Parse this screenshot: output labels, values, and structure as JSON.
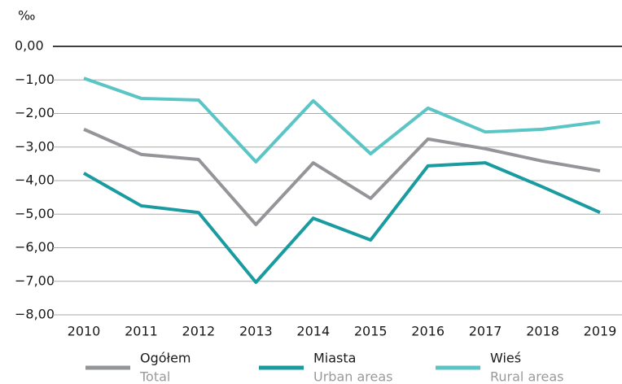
{
  "chart_data": {
    "type": "line",
    "y_unit": "‰",
    "categories": [
      "2010",
      "2011",
      "2012",
      "2013",
      "2014",
      "2015",
      "2016",
      "2017",
      "2018",
      "2019"
    ],
    "series": [
      {
        "name": "Ogółem",
        "name_en": "Total",
        "color": "#939598",
        "values": [
          -2.47,
          -3.22,
          -3.37,
          -5.31,
          -3.47,
          -4.53,
          -2.76,
          -3.05,
          -3.42,
          -3.71
        ]
      },
      {
        "name": "Miasta",
        "name_en": "Urban areas",
        "color": "#1a9ba0",
        "values": [
          -3.78,
          -4.75,
          -4.95,
          -7.03,
          -5.12,
          -5.77,
          -3.56,
          -3.47,
          -4.19,
          -4.95
        ]
      },
      {
        "name": "Wieś",
        "name_en": "Rural areas",
        "color": "#5bc5c5",
        "values": [
          -0.95,
          -1.55,
          -1.6,
          -3.44,
          -1.62,
          -3.2,
          -1.84,
          -2.55,
          -2.47,
          -2.25
        ]
      }
    ],
    "ylim": [
      -8,
      0
    ],
    "yticks": [
      {
        "value": 0,
        "label": "0,00"
      },
      {
        "value": -1,
        "label": "−1,00"
      },
      {
        "value": -2,
        "label": "−2,00"
      },
      {
        "value": -3,
        "label": "−3,00"
      },
      {
        "value": -4,
        "label": "−4,00"
      },
      {
        "value": -5,
        "label": "−5,00"
      },
      {
        "value": -6,
        "label": "−6,00"
      },
      {
        "value": -7,
        "label": "−7,00"
      },
      {
        "value": -8,
        "label": "−8,00"
      }
    ],
    "grid": true
  }
}
